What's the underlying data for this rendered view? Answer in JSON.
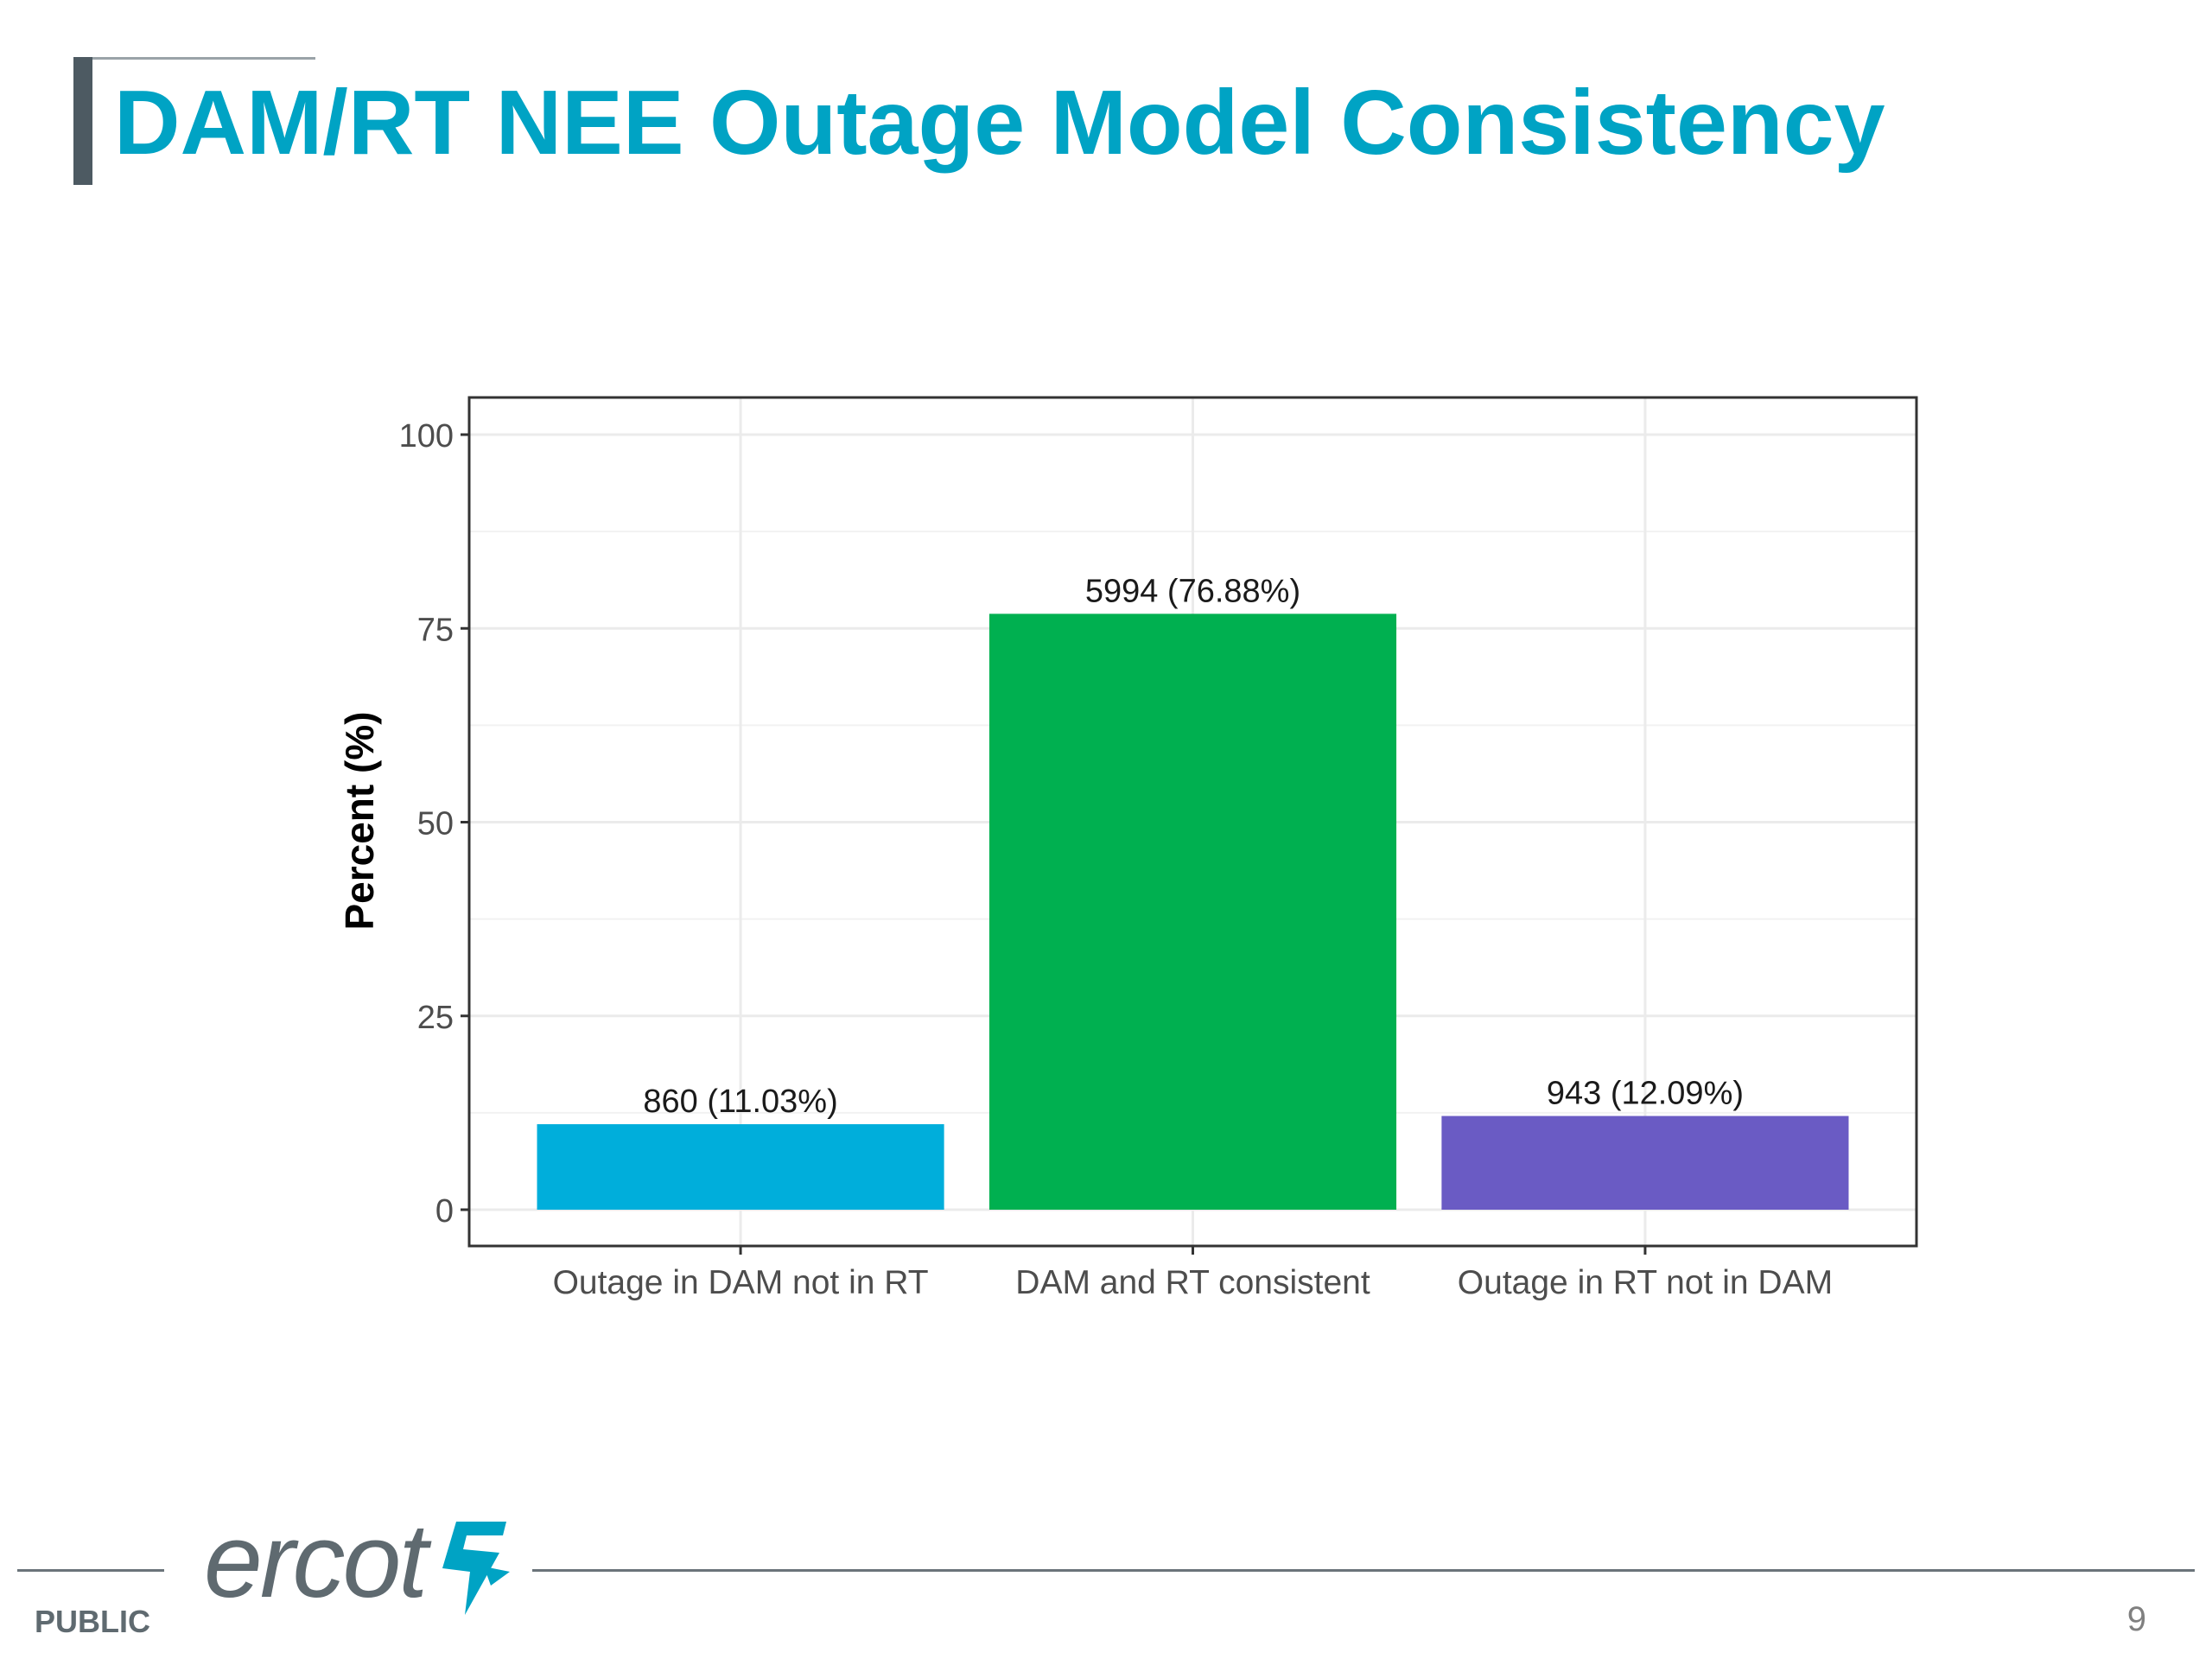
{
  "slide": {
    "title": "DAM/RT NEE Outage Model Consistency",
    "footer_label": "PUBLIC",
    "page_number": "9",
    "logo_text": "ercot",
    "accent_color": "#00a3c4"
  },
  "chart_data": {
    "type": "bar",
    "title": "",
    "xlabel": "",
    "ylabel": "Percent (%)",
    "ylim": [
      -4.5,
      105
    ],
    "yticks": [
      0,
      25,
      50,
      75,
      100
    ],
    "ytick_labels": [
      "0",
      "25",
      "50",
      "75",
      "100"
    ],
    "grid": true,
    "categories": [
      "Outage in DAM not in RT",
      "DAM and RT consistent",
      "Outage in RT not in DAM"
    ],
    "values": [
      11.03,
      76.88,
      12.09
    ],
    "counts": [
      860,
      5994,
      943
    ],
    "data_labels": [
      "860 (11.03%)",
      "5994 (76.88%)",
      "943 (12.09%)"
    ],
    "colors": [
      "#00aedb",
      "#00b050",
      "#6a5bc4"
    ]
  }
}
